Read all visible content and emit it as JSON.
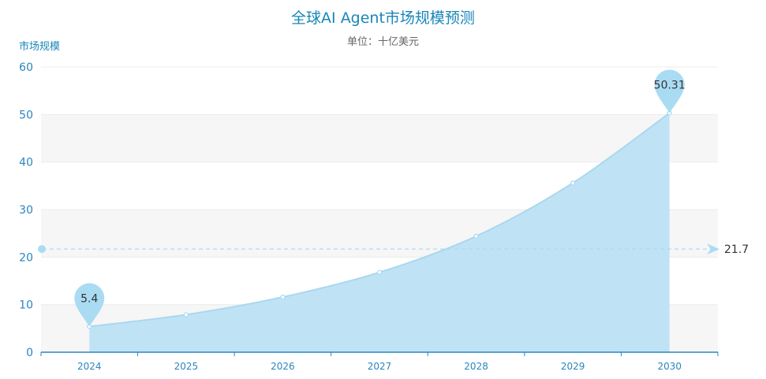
{
  "chart_data": {
    "type": "area",
    "title": "全球AI Agent市场规模预测",
    "subtitle": "单位：十亿美元",
    "ylabel": "市场规模",
    "xlabel": "",
    "categories": [
      "2024",
      "2025",
      "2026",
      "2027",
      "2028",
      "2029",
      "2030"
    ],
    "values": [
      5.4,
      7.9,
      11.6,
      16.8,
      24.4,
      35.6,
      50.31
    ],
    "ylim": [
      0,
      60
    ],
    "yticks": [
      0,
      10,
      20,
      30,
      40,
      50,
      60
    ],
    "markers": {
      "min": {
        "category": "2024",
        "label": "5.4"
      },
      "max": {
        "category": "2030",
        "label": "50.31"
      }
    },
    "average_line": {
      "value": 21.7,
      "label": "21.7"
    },
    "colors": {
      "area_fill": "#bfe3f5",
      "line": "#a9d8f0",
      "pin": "#a9dcf3",
      "axis": "#2a86c0",
      "title": "#1a86b8",
      "band": "#f6f6f6"
    },
    "grid": true
  }
}
